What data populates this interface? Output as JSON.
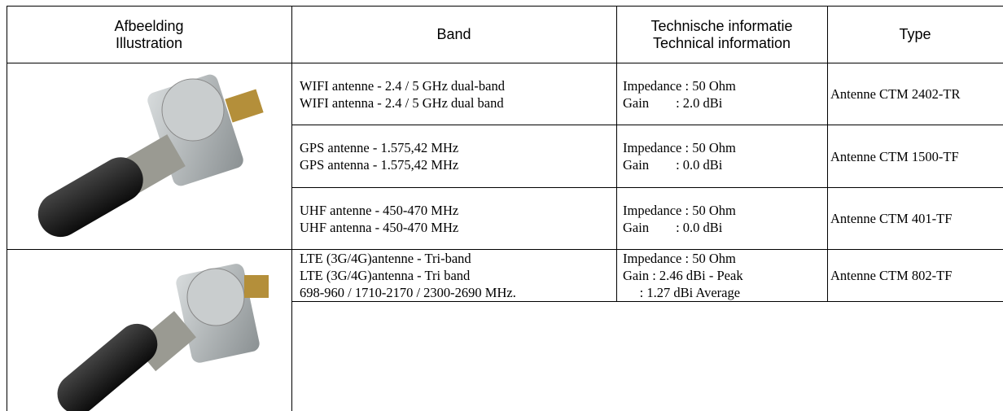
{
  "header": {
    "illustration": [
      "Afbeelding",
      "Illustration"
    ],
    "band": [
      "Band"
    ],
    "technical": [
      "Technische informatie",
      "Technical information"
    ],
    "type": [
      "Type"
    ]
  },
  "rows": [
    {
      "band": [
        "WIFI antenne - 2.4 / 5 GHz dual-band",
        "WIFI antenna - 2.4 / 5 GHz dual band"
      ],
      "technical": [
        "Impedance : 50 Ohm",
        "Gain        : 2.0 dBi"
      ],
      "type": "Antenne CTM 2402-TR"
    },
    {
      "band": [
        "GPS antenne - 1.575,42 MHz",
        "GPS antenna - 1.575,42 MHz"
      ],
      "technical": [
        "Impedance : 50 Ohm",
        "Gain        : 0.0 dBi"
      ],
      "type": "Antenne CTM 1500-TF"
    },
    {
      "band": [
        "UHF antenne - 450-470 MHz",
        "UHF antenna - 450-470 MHz"
      ],
      "technical": [
        "Impedance : 50 Ohm",
        "Gain        : 0.0 dBi"
      ],
      "type": "Antenne CTM 401-TF"
    },
    {
      "band": [
        "LTE (3G/4G)antenne - Tri-band",
        "LTE (3G/4G)antenna - Tri band",
        "698-960 / 1710-2170 / 2300-2690 MHz."
      ],
      "technical": [
        "Impedance : 50 Ohm",
        "Gain : 2.46 dBi - Peak",
        "     : 1.27 dBi Average"
      ],
      "type": "Antenne CTM 802-TF"
    }
  ]
}
